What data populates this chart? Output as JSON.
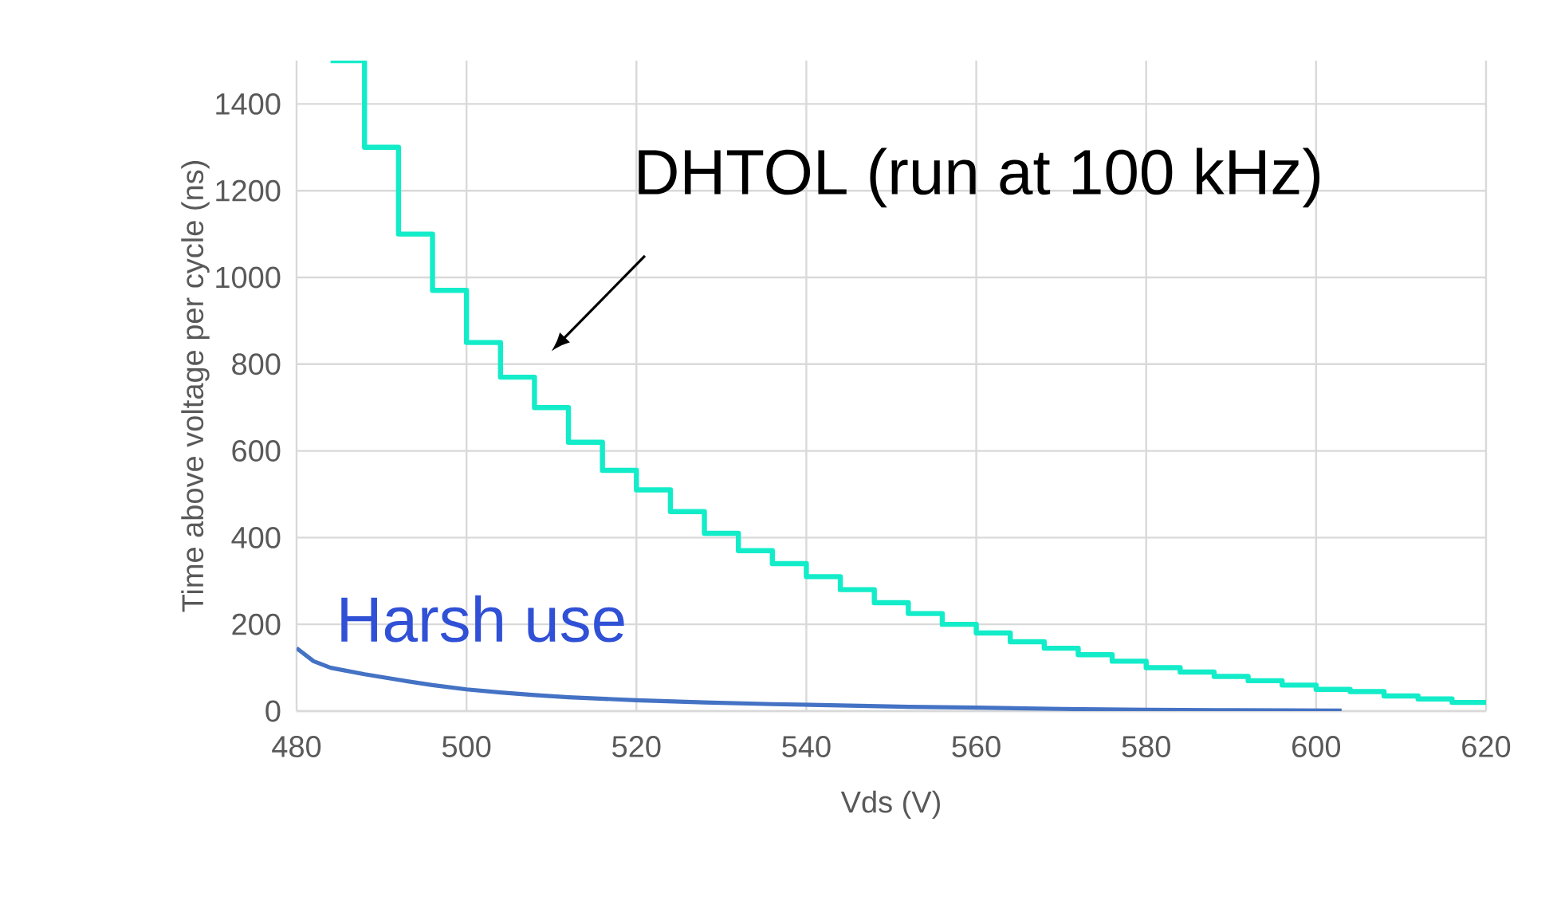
{
  "chart_data": {
    "type": "line",
    "xlabel": "Vds (V)",
    "ylabel": "Time above voltage  per cycle (ns)",
    "xlim": [
      480,
      620
    ],
    "ylim": [
      0,
      1500
    ],
    "xticks": [
      480,
      500,
      520,
      540,
      560,
      580,
      600,
      620
    ],
    "yticks": [
      0,
      200,
      400,
      600,
      800,
      1000,
      1200,
      1400
    ],
    "grid": true,
    "legend": false,
    "marker": "none",
    "line_style": "solid",
    "series": [
      {
        "name": "DHTOL (run at 100 kHz)",
        "type": "step",
        "color": "#13ecc9",
        "x": [
          484,
          488,
          492,
          496,
          500,
          504,
          508,
          512,
          516,
          520,
          524,
          528,
          532,
          536,
          540,
          544,
          548,
          552,
          556,
          560,
          564,
          568,
          572,
          576,
          580,
          584,
          588,
          592,
          596,
          600,
          604,
          608,
          612,
          616,
          620
        ],
        "values": [
          1500,
          1300,
          1100,
          970,
          850,
          770,
          700,
          620,
          555,
          510,
          460,
          410,
          370,
          340,
          310,
          280,
          250,
          225,
          200,
          180,
          160,
          145,
          130,
          115,
          100,
          90,
          80,
          70,
          60,
          50,
          45,
          35,
          28,
          20,
          20
        ]
      },
      {
        "name": "Harsh use",
        "type": "line",
        "color": "#4472c4",
        "x": [
          480,
          482,
          484,
          488,
          492,
          496,
          500,
          504,
          508,
          512,
          520,
          528,
          536,
          544,
          552,
          560,
          570,
          580,
          590,
          603
        ],
        "values": [
          145,
          115,
          100,
          85,
          72,
          60,
          50,
          43,
          37,
          32,
          25,
          20,
          16,
          13,
          10,
          8,
          5,
          3,
          2,
          1
        ]
      }
    ]
  }
}
